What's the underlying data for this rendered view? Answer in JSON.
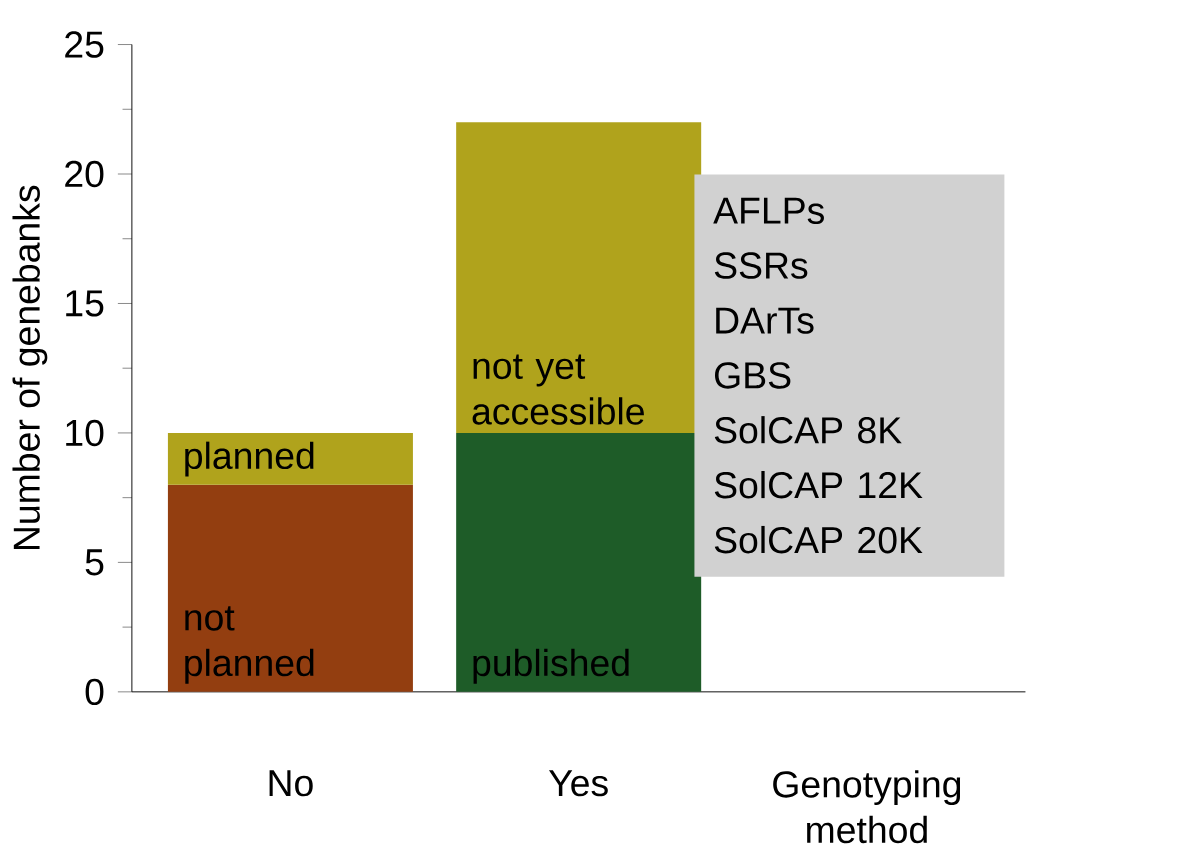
{
  "chart_data": {
    "type": "bar",
    "stacked": true,
    "ylabel": "Number of genebanks",
    "categories": [
      "No",
      "Yes",
      "Genotyping method"
    ],
    "series": [
      {
        "colors": [
          "#933e10",
          "#1e5c28",
          null
        ],
        "values": [
          8,
          10,
          null
        ]
      },
      {
        "color": "#b0a31c",
        "values": [
          2,
          12,
          null
        ]
      }
    ],
    "ylim": [
      0,
      25
    ],
    "yticks": [
      0,
      5,
      10,
      15,
      20,
      25
    ],
    "annotations": [
      "not planned",
      "planned",
      "published",
      "not yet accessible",
      "AFLPs",
      "SSRs",
      "DArTs",
      "GBS",
      "SolCAP 8K",
      "SolCAP 12K",
      "SolCAP 20K"
    ]
  }
}
